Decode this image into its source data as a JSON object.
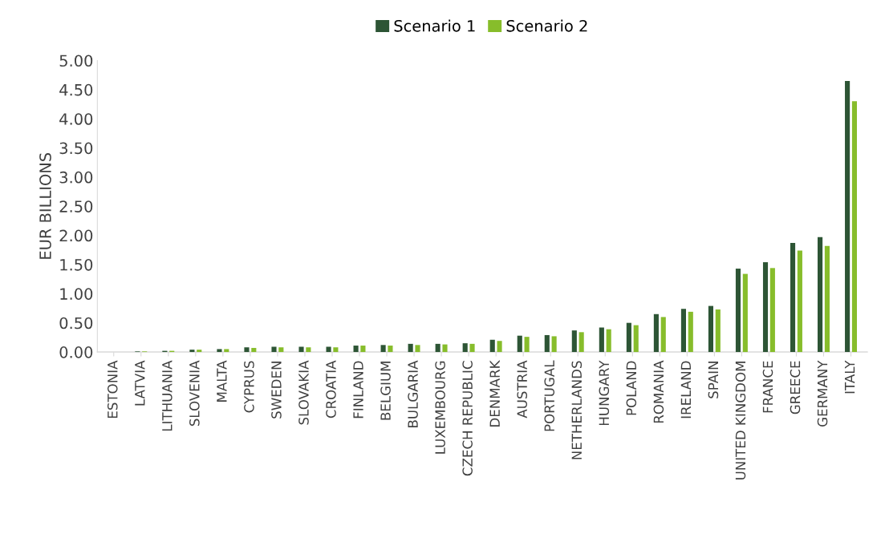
{
  "chart_data": {
    "type": "bar",
    "ylabel": "EUR BILLIONS",
    "categories": [
      "ESTONIA",
      "LATVIA",
      "LITHUANIA",
      "SLOVENIA",
      "MALTA",
      "CYPRUS",
      "SWEDEN",
      "SLOVAKIA",
      "CROATIA",
      "FINLAND",
      "BELGIUM",
      "BULGARIA",
      "LUXEMBOURG",
      "CZECH REPUBLIC",
      "DENMARK",
      "AUSTRIA",
      "PORTUGAL",
      "NETHERLANDS",
      "HUNGARY",
      "POLAND",
      "ROMANIA",
      "IRELAND",
      "SPAIN",
      "UNITED KINGDOM",
      "FRANCE",
      "GREECE",
      "GERMANY",
      "ITALY"
    ],
    "series": [
      {
        "name": "Scenario 1",
        "color": "#2d5535",
        "values": [
          0.0,
          0.01,
          0.02,
          0.04,
          0.05,
          0.08,
          0.09,
          0.09,
          0.09,
          0.11,
          0.12,
          0.14,
          0.14,
          0.15,
          0.21,
          0.28,
          0.29,
          0.37,
          0.42,
          0.5,
          0.65,
          0.74,
          0.79,
          1.43,
          1.54,
          1.87,
          1.97,
          4.65
        ]
      },
      {
        "name": "Scenario 2",
        "color": "#87bd2b",
        "values": [
          0.0,
          0.01,
          0.02,
          0.04,
          0.05,
          0.07,
          0.08,
          0.08,
          0.08,
          0.11,
          0.11,
          0.12,
          0.13,
          0.14,
          0.19,
          0.26,
          0.27,
          0.34,
          0.39,
          0.46,
          0.6,
          0.69,
          0.73,
          1.34,
          1.44,
          1.74,
          1.82,
          4.3
        ]
      }
    ],
    "ylim": [
      0,
      5
    ],
    "yticks": [
      {
        "value": 0,
        "label": "0.00"
      },
      {
        "value": 0.5,
        "label": "0.50"
      },
      {
        "value": 1,
        "label": "1.00"
      },
      {
        "value": 1.5,
        "label": "1.50"
      },
      {
        "value": 2,
        "label": "2.00"
      },
      {
        "value": 2.5,
        "label": "2.50"
      },
      {
        "value": 3,
        "label": "3.00"
      },
      {
        "value": 3.5,
        "label": "3.50"
      },
      {
        "value": 4,
        "label": "4.00"
      },
      {
        "value": 4.5,
        "label": "4.50"
      },
      {
        "value": 5,
        "label": "5.00"
      }
    ],
    "grid": false,
    "legend": "top"
  }
}
